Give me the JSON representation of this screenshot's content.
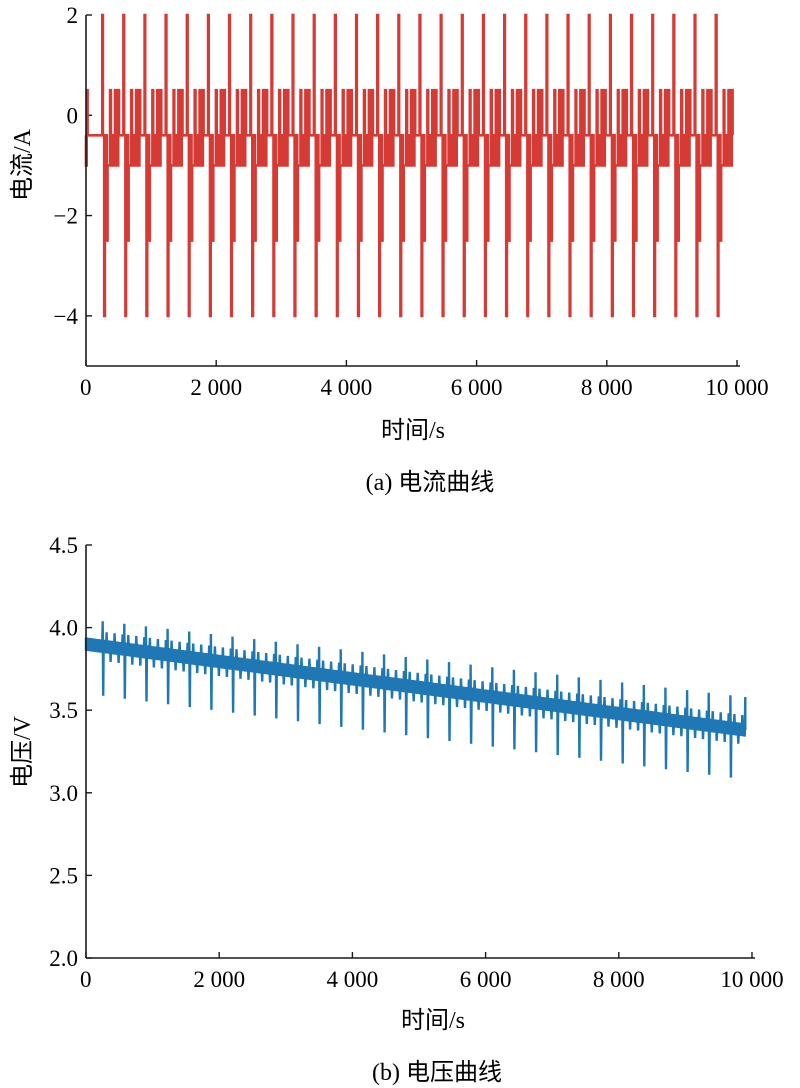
{
  "chart_data": [
    {
      "type": "line",
      "caption": "(a) 电流曲线",
      "xlabel": "时间/s",
      "ylabel": "电流/A",
      "xlim": [
        0,
        10000
      ],
      "ylim": [
        -5,
        2
      ],
      "xticks": [
        0,
        2000,
        4000,
        6000,
        8000,
        10000
      ],
      "xtick_labels": [
        "0",
        "2 000",
        "4 000",
        "6 000",
        "8 000",
        "10 000"
      ],
      "yticks": [
        -4,
        -2,
        0,
        2
      ],
      "ytick_labels": [
        "−4",
        "−2",
        "0",
        "2"
      ],
      "grid": false,
      "series": [
        {
          "color": "#d63a35",
          "pattern": {
            "description": "repeated HPPC-style current pulses",
            "pulse_start_s": 250,
            "pulse_period_s": 325,
            "pulse_count": 30,
            "positive_peak": 2,
            "negative_peak": -4,
            "secondary_positive": 0.5,
            "secondary_negative": -2.5,
            "baseline_high": -0.4,
            "baseline_low": -1
          }
        }
      ]
    },
    {
      "type": "line",
      "caption": "(b) 电压曲线",
      "xlabel": "时间/s",
      "ylabel": "电压/V",
      "xlim": [
        0,
        10000
      ],
      "ylim": [
        2.0,
        4.5
      ],
      "xticks": [
        0,
        2000,
        4000,
        6000,
        8000,
        10000
      ],
      "xtick_labels": [
        "0",
        "2 000",
        "4 000",
        "6 000",
        "8 000",
        "10 000"
      ],
      "yticks": [
        2.0,
        2.5,
        3.0,
        3.5,
        4.0,
        4.5
      ],
      "ytick_labels": [
        "2.0",
        "2.5",
        "3.0",
        "3.5",
        "4.0",
        "4.5"
      ],
      "grid": false,
      "series": [
        {
          "color": "#1f77b4",
          "pattern": {
            "description": "voltage decreasing linearly with pulse spikes",
            "trend_start": [
              0,
              3.9
            ],
            "trend_end": [
              9900,
              3.38
            ],
            "band_halfwidth": 0.04,
            "spike_up_start": 4.05,
            "spike_up_end": 3.58,
            "spike_down_start": 3.6,
            "spike_down_end": 3.08,
            "pulse_start_s": 250,
            "pulse_period_s": 325,
            "pulse_count": 30,
            "end_s": 9900
          }
        }
      ]
    }
  ]
}
